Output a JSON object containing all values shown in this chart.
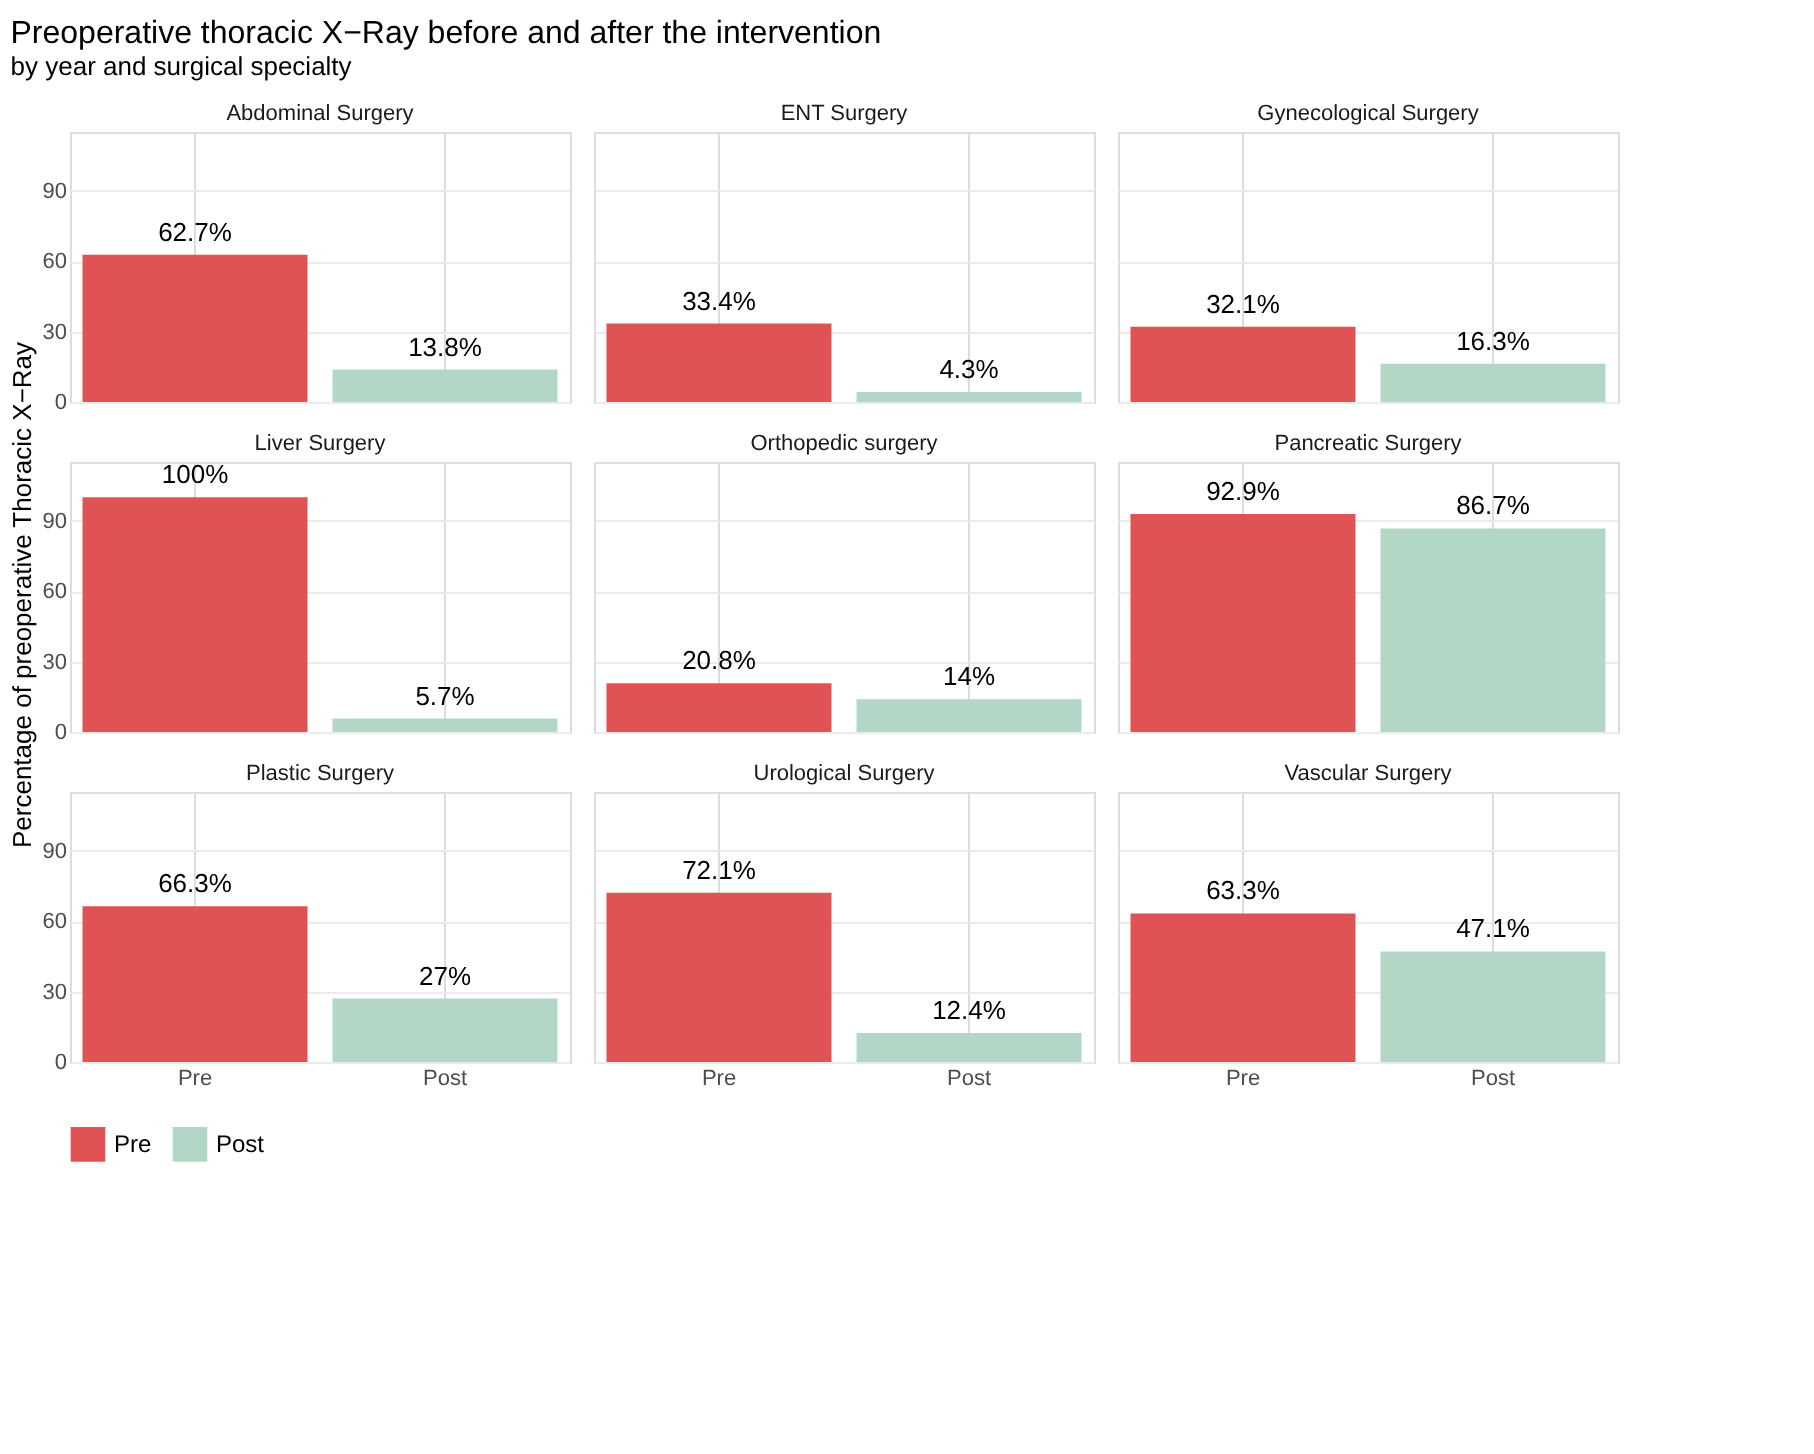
{
  "chart_data": [
    {
      "type": "bar",
      "title": "Abdominal Surgery",
      "annotations": [
        "Preoperative thoracic X−Ray before and after the intervention",
        "by year and surgical specialty"
      ],
      "categories": [
        "Pre",
        "Post"
      ],
      "series": [
        {
          "name": "Pre",
          "color": "#df5355",
          "values": [
            62.7,
            null
          ],
          "value_labels": [
            "62.7%",
            null
          ]
        },
        {
          "name": "Post",
          "color": "#b3d7c6",
          "values": [
            null,
            13.8
          ],
          "value_labels": [
            null,
            "13.8%"
          ]
        }
      ],
      "ylim": [
        0,
        115
      ],
      "yticks": [
        0,
        30,
        60,
        90
      ],
      "grid": true,
      "tick_labels": "y",
      "legend": "bottom"
    },
    {
      "type": "bar",
      "title": "ENT Surgery",
      "categories": [
        "Pre",
        "Post"
      ],
      "series": [
        {
          "name": "Pre",
          "color": "#df5355",
          "values": [
            33.4,
            null
          ],
          "value_labels": [
            "33.4%",
            null
          ]
        },
        {
          "name": "Post",
          "color": "#b3d7c6",
          "values": [
            null,
            4.3
          ],
          "value_labels": [
            null,
            "4.3%"
          ]
        }
      ],
      "ylim": [
        0,
        115
      ],
      "yticks": [
        0,
        30,
        60,
        90
      ],
      "grid": true,
      "tick_labels": false,
      "legend": "bottom"
    },
    {
      "type": "bar",
      "title": "Gynecological Surgery",
      "categories": [
        "Pre",
        "Post"
      ],
      "series": [
        {
          "name": "Pre",
          "color": "#df5355",
          "values": [
            32.1,
            null
          ],
          "value_labels": [
            "32.1%",
            null
          ]
        },
        {
          "name": "Post",
          "color": "#b3d7c6",
          "values": [
            null,
            16.3
          ],
          "value_labels": [
            null,
            "16.3%"
          ]
        }
      ],
      "ylim": [
        0,
        115
      ],
      "yticks": [
        0,
        30,
        60,
        90
      ],
      "grid": true,
      "tick_labels": false,
      "legend": "bottom"
    },
    {
      "type": "bar",
      "title": "Liver Surgery",
      "ylabel": "Percentage of preoperative Thoracic X−Ray",
      "categories": [
        "Pre",
        "Post"
      ],
      "series": [
        {
          "name": "Pre",
          "color": "#df5355",
          "values": [
            100,
            null
          ],
          "value_labels": [
            "100%",
            null
          ]
        },
        {
          "name": "Post",
          "color": "#b3d7c6",
          "values": [
            null,
            5.7
          ],
          "value_labels": [
            null,
            "5.7%"
          ]
        }
      ],
      "ylim": [
        0,
        115
      ],
      "yticks": [
        0,
        30,
        60,
        90
      ],
      "grid": true,
      "tick_labels": "y",
      "legend": "bottom"
    },
    {
      "type": "bar",
      "title": "Orthopedic surgery",
      "categories": [
        "Pre",
        "Post"
      ],
      "series": [
        {
          "name": "Pre",
          "color": "#df5355",
          "values": [
            20.8,
            null
          ],
          "value_labels": [
            "20.8%",
            null
          ]
        },
        {
          "name": "Post",
          "color": "#b3d7c6",
          "values": [
            null,
            14
          ],
          "value_labels": [
            null,
            "14%"
          ]
        }
      ],
      "ylim": [
        0,
        115
      ],
      "yticks": [
        0,
        30,
        60,
        90
      ],
      "grid": true,
      "tick_labels": false,
      "legend": "bottom"
    },
    {
      "type": "bar",
      "title": "Pancreatic Surgery",
      "categories": [
        "Pre",
        "Post"
      ],
      "series": [
        {
          "name": "Pre",
          "color": "#df5355",
          "values": [
            92.9,
            null
          ],
          "value_labels": [
            "92.9%",
            null
          ]
        },
        {
          "name": "Post",
          "color": "#b3d7c6",
          "values": [
            null,
            86.7
          ],
          "value_labels": [
            null,
            "86.7%"
          ]
        }
      ],
      "ylim": [
        0,
        115
      ],
      "yticks": [
        0,
        30,
        60,
        90
      ],
      "grid": true,
      "tick_labels": false,
      "legend": "bottom"
    },
    {
      "type": "bar",
      "title": "Plastic Surgery",
      "categories": [
        "Pre",
        "Post"
      ],
      "series": [
        {
          "name": "Pre",
          "color": "#df5355",
          "values": [
            66.3,
            null
          ],
          "value_labels": [
            "66.3%",
            null
          ]
        },
        {
          "name": "Post",
          "color": "#b3d7c6",
          "values": [
            null,
            27
          ],
          "value_labels": [
            null,
            "27%"
          ]
        }
      ],
      "ylim": [
        0,
        115
      ],
      "yticks": [
        0,
        30,
        60,
        90
      ],
      "grid": true,
      "legend": "bottom"
    },
    {
      "type": "bar",
      "title": "Urological Surgery",
      "categories": [
        "Pre",
        "Post"
      ],
      "series": [
        {
          "name": "Pre",
          "color": "#df5355",
          "values": [
            72.1,
            null
          ],
          "value_labels": [
            "72.1%",
            null
          ]
        },
        {
          "name": "Post",
          "color": "#b3d7c6",
          "values": [
            null,
            12.4
          ],
          "value_labels": [
            null,
            "12.4%"
          ]
        }
      ],
      "ylim": [
        0,
        115
      ],
      "yticks": [
        0,
        30,
        60,
        90
      ],
      "grid": true,
      "tick_labels": "x",
      "legend": "bottom"
    },
    {
      "type": "bar",
      "title": "Vascular Surgery",
      "categories": [
        "Pre",
        "Post"
      ],
      "series": [
        {
          "name": "Pre",
          "color": "#df5355",
          "values": [
            63.3,
            null
          ],
          "value_labels": [
            "63.3%",
            null
          ]
        },
        {
          "name": "Post",
          "color": "#b3d7c6",
          "values": [
            null,
            47.1
          ],
          "value_labels": [
            null,
            "47.1%"
          ]
        }
      ],
      "ylim": [
        0,
        115
      ],
      "yticks": [
        0,
        30,
        60,
        90
      ],
      "grid": true,
      "tick_labels": "x",
      "legend": "bottom"
    }
  ]
}
